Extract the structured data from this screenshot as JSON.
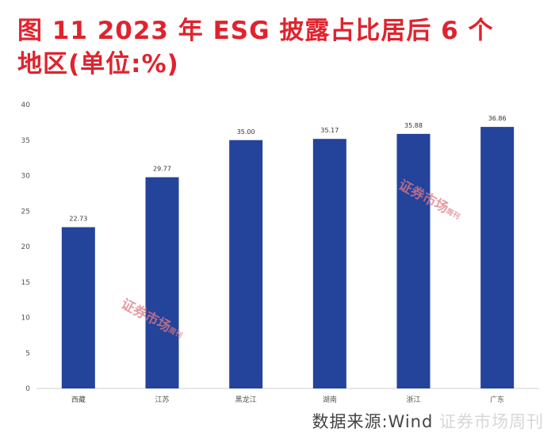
{
  "title": {
    "line1": "图 11  2023 年 ESG 披露占比居后 6 个",
    "line2": "地区(单位:%)"
  },
  "colors": {
    "title": "#e0232e",
    "bar": "#24439a",
    "axis": "#cfcfcf",
    "tick_text": "#555555",
    "stamp": "#e07a86"
  },
  "chart_data": {
    "type": "bar",
    "categories": [
      "西藏",
      "江苏",
      "黑龙江",
      "湖南",
      "浙江",
      "广东"
    ],
    "values": [
      22.73,
      29.77,
      35.0,
      35.17,
      35.88,
      36.86
    ],
    "value_labels": [
      "22.73",
      "29.77",
      "35.00",
      "35.17",
      "35.88",
      "36.86"
    ],
    "ylim": [
      0,
      40
    ],
    "yticks": [
      0,
      5,
      10,
      15,
      20,
      25,
      30,
      35,
      40
    ],
    "xlabel": "",
    "ylabel": "",
    "grid": false,
    "legend": "none"
  },
  "watermarks": {
    "stamp_text": "证券市场",
    "stamp_small": "周刊"
  },
  "source": {
    "text": "数据来源:Wind",
    "watermark": " 证券市场周刊"
  }
}
